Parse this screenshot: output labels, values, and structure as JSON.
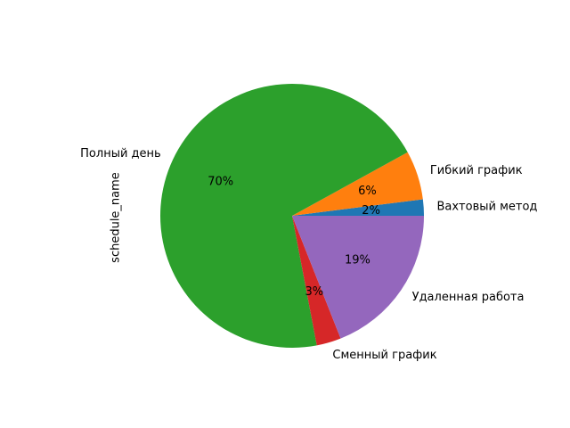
{
  "chart_data": {
    "type": "pie",
    "ylabel": "schedule_name",
    "start_angle_deg": 0,
    "counterclock": true,
    "slices": [
      {
        "label": "Вахтовый метод",
        "value": 2,
        "pct_label": "2%",
        "color": "#1f77b4"
      },
      {
        "label": "Гибкий график",
        "value": 6,
        "pct_label": "6%",
        "color": "#ff7f0e"
      },
      {
        "label": "Полный день",
        "value": 70,
        "pct_label": "70%",
        "color": "#2ca02c"
      },
      {
        "label": "Сменный график",
        "value": 3,
        "pct_label": "3%",
        "color": "#d62728"
      },
      {
        "label": "Удаленная работа",
        "value": 19,
        "pct_label": "19%",
        "color": "#9467bd"
      }
    ]
  }
}
